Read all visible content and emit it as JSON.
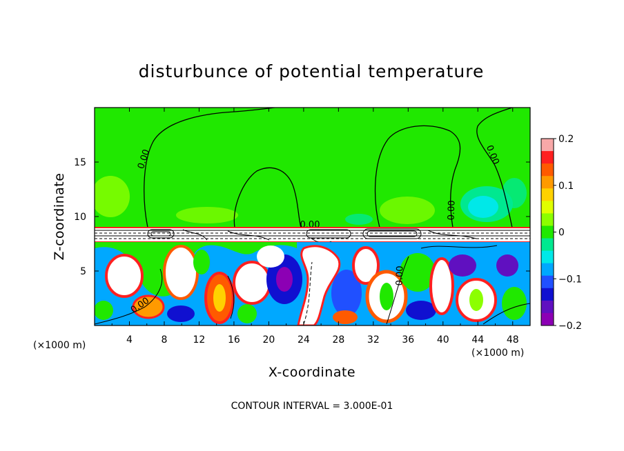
{
  "chart_data": {
    "type": "heatmap",
    "title": "disturbunce of potential temperature",
    "xlabel": "X-coordinate",
    "ylabel": "Z-coordinate",
    "x_unit_left": "(×1000 m)",
    "x_unit_right": "(×1000 m)",
    "xlim": [
      0,
      50
    ],
    "ylim": [
      0,
      20
    ],
    "xticks": [
      "4",
      "8",
      "12",
      "16",
      "20",
      "24",
      "28",
      "32",
      "36",
      "40",
      "44",
      "48"
    ],
    "xtick_values": [
      4,
      8,
      12,
      16,
      20,
      24,
      28,
      32,
      36,
      40,
      44,
      48
    ],
    "yticks": [
      "5",
      "10",
      "15"
    ],
    "ytick_values": [
      5,
      10,
      15
    ],
    "colorbar": {
      "min": -0.2,
      "max": 0.2,
      "ticks": [
        "0.2",
        "0.1",
        "0",
        "−0.1",
        "−0.2"
      ],
      "tick_values": [
        0.2,
        0.1,
        0,
        -0.1,
        -0.2
      ],
      "colors": [
        "#f8a8a8",
        "#ff2020",
        "#ff5a00",
        "#ff9a00",
        "#ffd200",
        "#e0ff00",
        "#8cff00",
        "#20e800",
        "#00e890",
        "#00e8e8",
        "#00a8ff",
        "#2050ff",
        "#1010d0",
        "#6010c0",
        "#8c00b4"
      ]
    },
    "contour_label": "0.00",
    "contour_interval_text": "CONTOUR INTERVAL = 3.000E-01"
  }
}
